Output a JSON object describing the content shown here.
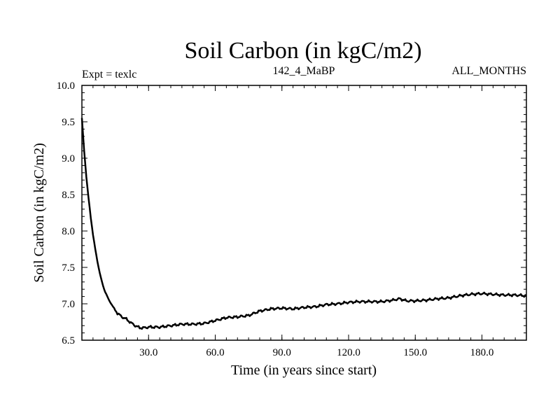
{
  "chart_data": {
    "type": "line",
    "title": "Soil Carbon (in kgC/m2)",
    "subtitle_left": "Expt = texlc",
    "subtitle_center": "142_4_MaBP",
    "subtitle_right": "ALL_MONTHS",
    "xlabel": "Time (in years since start)",
    "ylabel": "Soil Carbon (in kgC/m2)",
    "xlim": [
      0,
      200
    ],
    "ylim": [
      6.5,
      10.0
    ],
    "x_ticks": [
      30,
      60,
      90,
      120,
      150,
      180
    ],
    "x_tick_labels": [
      "30.0",
      "60.0",
      "90.0",
      "120.0",
      "150.0",
      "180.0"
    ],
    "y_ticks": [
      6.5,
      7.0,
      7.5,
      8.0,
      8.5,
      9.0,
      9.5,
      10.0
    ],
    "y_tick_labels": [
      "6.5",
      "7.0",
      "7.5",
      "8.0",
      "8.5",
      "9.0",
      "9.5",
      "10.0"
    ],
    "series": [
      {
        "name": "Soil Carbon",
        "x": [
          0,
          1,
          2,
          3,
          4,
          5,
          6,
          7,
          8,
          9,
          10,
          12,
          14,
          16,
          18,
          20,
          22,
          24,
          26,
          28,
          30,
          35,
          40,
          45,
          50,
          55,
          60,
          65,
          70,
          75,
          80,
          85,
          90,
          95,
          100,
          105,
          110,
          115,
          120,
          125,
          130,
          135,
          140,
          143,
          146,
          150,
          155,
          160,
          165,
          170,
          175,
          180,
          185,
          190,
          195,
          200
        ],
        "values": [
          9.55,
          9.1,
          8.75,
          8.45,
          8.18,
          7.95,
          7.75,
          7.58,
          7.43,
          7.3,
          7.2,
          7.06,
          6.96,
          6.87,
          6.82,
          6.79,
          6.74,
          6.7,
          6.67,
          6.67,
          6.68,
          6.68,
          6.7,
          6.72,
          6.72,
          6.73,
          6.77,
          6.81,
          6.82,
          6.84,
          6.9,
          6.93,
          6.94,
          6.93,
          6.95,
          6.96,
          6.99,
          7.0,
          7.02,
          7.03,
          7.03,
          7.03,
          7.05,
          7.07,
          7.04,
          7.04,
          7.05,
          7.07,
          7.08,
          7.11,
          7.13,
          7.14,
          7.13,
          7.12,
          7.12,
          7.11
        ]
      }
    ]
  }
}
